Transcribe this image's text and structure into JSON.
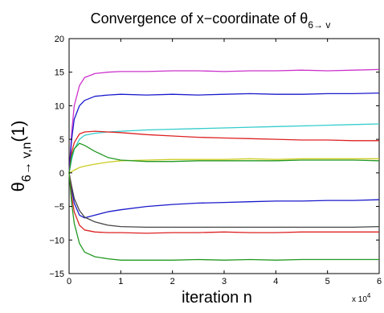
{
  "chart_data": {
    "type": "line",
    "title": "Convergence of x−coordinate of θ",
    "title_subscript": "6→ v",
    "xlabel": "iteration n",
    "ylabel_main": "θ",
    "ylabel_subscript": "6→ v,n",
    "ylabel_suffix": "(1)",
    "x_exponent_base": "x 10",
    "x_exponent_power": "4",
    "xlim": [
      0,
      6
    ],
    "ylim": [
      -15,
      20
    ],
    "xticks": [
      0,
      1,
      2,
      3,
      4,
      5,
      6
    ],
    "yticks": [
      -15,
      -10,
      -5,
      0,
      5,
      10,
      15,
      20
    ],
    "x": [
      0,
      0.05,
      0.1,
      0.2,
      0.3,
      0.5,
      0.75,
      1,
      1.5,
      2,
      2.5,
      3,
      3.5,
      4,
      4.5,
      5,
      5.5,
      6
    ],
    "series": [
      {
        "color": "#cc33cc",
        "values": [
          0,
          6,
          10,
          13,
          14.2,
          14.8,
          15,
          15.1,
          15.1,
          15.2,
          15.2,
          15.1,
          15.2,
          15.2,
          15.3,
          15.2,
          15.3,
          15.4
        ]
      },
      {
        "color": "#1a1acc",
        "values": [
          0,
          5,
          8,
          10,
          10.8,
          11.4,
          11.6,
          11.7,
          11.6,
          11.7,
          11.6,
          11.7,
          11.8,
          11.7,
          11.7,
          11.8,
          11.8,
          11.9
        ]
      },
      {
        "color": "#33cccc",
        "values": [
          0,
          2,
          3.5,
          5,
          5.6,
          5.9,
          6.1,
          6.2,
          6.4,
          6.5,
          6.6,
          6.7,
          6.8,
          6.9,
          7.0,
          7.1,
          7.2,
          7.3
        ]
      },
      {
        "color": "#dd2222",
        "values": [
          0,
          3,
          4.5,
          5.8,
          6.1,
          6.2,
          6.1,
          6.0,
          5.7,
          5.5,
          5.3,
          5.2,
          5.1,
          5.0,
          4.9,
          4.9,
          4.8,
          4.8
        ]
      },
      {
        "color": "#cccc22",
        "values": [
          0,
          0.2,
          0.4,
          0.8,
          1.0,
          1.3,
          1.6,
          1.8,
          1.9,
          2.0,
          2.0,
          2.0,
          2.1,
          2.0,
          2.1,
          2.1,
          2.1,
          2.1
        ]
      },
      {
        "color": "#229922",
        "values": [
          0,
          2.5,
          3.6,
          4.4,
          4.1,
          3.2,
          2.3,
          1.9,
          1.7,
          1.7,
          1.8,
          1.8,
          1.8,
          1.8,
          1.9,
          1.9,
          1.9,
          1.8
        ]
      },
      {
        "color": "#1a1acc",
        "values": [
          0,
          -2.5,
          -4.5,
          -6.3,
          -6.7,
          -6.3,
          -5.8,
          -5.5,
          -5.0,
          -4.7,
          -4.5,
          -4.4,
          -4.3,
          -4.2,
          -4.2,
          -4.1,
          -4.1,
          -4.0
        ]
      },
      {
        "color": "#444444",
        "values": [
          0,
          -2,
          -3.8,
          -5.6,
          -6.6,
          -7.3,
          -7.8,
          -8.0,
          -8.1,
          -8.1,
          -8.1,
          -8.1,
          -8.1,
          -8.1,
          -8.1,
          -8.1,
          -8.1,
          -8.0
        ]
      },
      {
        "color": "#dd2222",
        "values": [
          0,
          -3.5,
          -5.8,
          -7.8,
          -8.5,
          -8.8,
          -8.9,
          -8.9,
          -9.0,
          -8.9,
          -8.9,
          -8.8,
          -8.9,
          -8.9,
          -8.8,
          -8.8,
          -8.8,
          -8.8
        ]
      },
      {
        "color": "#229922",
        "values": [
          0,
          -4.5,
          -7.5,
          -10.5,
          -11.8,
          -12.5,
          -12.8,
          -13.0,
          -13.0,
          -13.0,
          -12.9,
          -13.0,
          -12.9,
          -13.0,
          -12.9,
          -12.9,
          -12.9,
          -12.9
        ]
      }
    ]
  }
}
